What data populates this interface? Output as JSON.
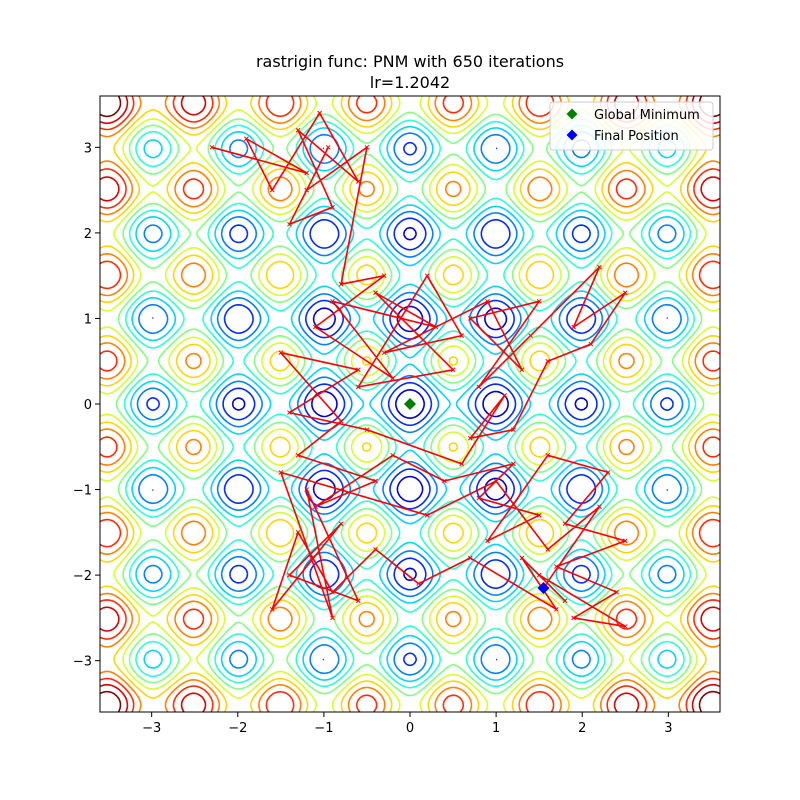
{
  "chart_data": {
    "type": "line",
    "title_line1": "rastrigin func: PNM with 650 iterations",
    "title_line2": "lr=1.2042",
    "xlabel": "",
    "ylabel": "",
    "xlim": [
      -3.6,
      3.6
    ],
    "ylim": [
      -3.6,
      3.6
    ],
    "xticks": [
      -3,
      -2,
      -1,
      0,
      1,
      2,
      3
    ],
    "yticks": [
      -3,
      -2,
      -1,
      0,
      1,
      2,
      3
    ],
    "xtick_labels": [
      "−3",
      "−2",
      "−1",
      "0",
      "1",
      "2",
      "3"
    ],
    "ytick_labels": [
      "−3",
      "−2",
      "−1",
      "0",
      "1",
      "2",
      "3"
    ],
    "grid": false,
    "legend_position": "top-right",
    "contour": {
      "function": "rastrigin",
      "colormap": "jet",
      "value_range": [
        0,
        60
      ]
    },
    "trajectory": {
      "color": "#ff0000",
      "points": [
        [
          -2.3,
          3.0
        ],
        [
          -1.2,
          2.7
        ],
        [
          -1.9,
          3.1
        ],
        [
          -1.6,
          2.5
        ],
        [
          -1.05,
          3.4
        ],
        [
          -0.6,
          2.6
        ],
        [
          -1.3,
          3.2
        ],
        [
          -0.9,
          2.3
        ],
        [
          -1.4,
          2.1
        ],
        [
          -0.95,
          3.0
        ],
        [
          -1.2,
          2.5
        ],
        [
          -0.5,
          3.0
        ],
        [
          -0.8,
          1.4
        ],
        [
          -0.3,
          1.5
        ],
        [
          -1.1,
          0.9
        ],
        [
          -0.2,
          0.3
        ],
        [
          -0.9,
          1.2
        ],
        [
          0.3,
          0.9
        ],
        [
          -0.4,
          1.3
        ],
        [
          0.5,
          0.4
        ],
        [
          -0.6,
          0.2
        ],
        [
          0.2,
          1.5
        ],
        [
          0.6,
          0.8
        ],
        [
          -0.3,
          0.6
        ],
        [
          0.9,
          1.2
        ],
        [
          1.3,
          0.4
        ],
        [
          0.7,
          1.0
        ],
        [
          1.5,
          1.2
        ],
        [
          0.8,
          0.2
        ],
        [
          1.4,
          0.8
        ],
        [
          2.2,
          1.6
        ],
        [
          1.9,
          0.9
        ],
        [
          2.5,
          1.3
        ],
        [
          2.1,
          0.7
        ],
        [
          1.6,
          0.5
        ],
        [
          1.2,
          -0.3
        ],
        [
          0.7,
          -0.4
        ],
        [
          1.1,
          0.1
        ],
        [
          0.6,
          -0.7
        ],
        [
          -0.5,
          -0.3
        ],
        [
          -1.4,
          -0.1
        ],
        [
          -0.6,
          0.4
        ],
        [
          -1.5,
          0.6
        ],
        [
          -0.8,
          -0.2
        ],
        [
          -1.3,
          -0.6
        ],
        [
          -0.4,
          -0.9
        ],
        [
          -1.1,
          -1.2
        ],
        [
          -0.2,
          -0.6
        ],
        [
          0.4,
          -0.9
        ],
        [
          1.2,
          -0.7
        ],
        [
          0.8,
          -1.1
        ],
        [
          1.5,
          -1.3
        ],
        [
          0.9,
          -1.6
        ],
        [
          1.6,
          -0.6
        ],
        [
          2.3,
          -0.8
        ],
        [
          1.8,
          -1.4
        ],
        [
          2.5,
          -1.6
        ],
        [
          1.7,
          -1.9
        ],
        [
          2.4,
          -2.2
        ],
        [
          1.9,
          -2.5
        ],
        [
          2.5,
          -2.6
        ],
        [
          1.5,
          -2.0
        ],
        [
          1.8,
          -2.3
        ],
        [
          1.3,
          -1.8
        ],
        [
          1.7,
          -2.4
        ],
        [
          0.7,
          -1.8
        ],
        [
          0.1,
          -2.1
        ],
        [
          -0.4,
          -1.7
        ],
        [
          -0.9,
          -2.2
        ],
        [
          -1.3,
          -1.5
        ],
        [
          -1.6,
          -2.4
        ],
        [
          -0.8,
          -1.4
        ],
        [
          -1.4,
          -2.0
        ],
        [
          -0.6,
          -2.3
        ],
        [
          -1.2,
          -1.0
        ],
        [
          -0.9,
          -2.5
        ],
        [
          -1.5,
          -0.8
        ],
        [
          0.2,
          -1.3
        ],
        [
          1.0,
          -0.9
        ],
        [
          1.6,
          -1.7
        ],
        [
          2.2,
          -1.2
        ],
        [
          1.55,
          -2.15
        ]
      ]
    },
    "markers": [
      {
        "name": "Global Minimum",
        "x": 0.0,
        "y": 0.0,
        "color": "#008000",
        "shape": "diamond"
      },
      {
        "name": "Final Position",
        "x": 1.55,
        "y": -2.15,
        "color": "#0000ff",
        "shape": "diamond"
      }
    ]
  }
}
